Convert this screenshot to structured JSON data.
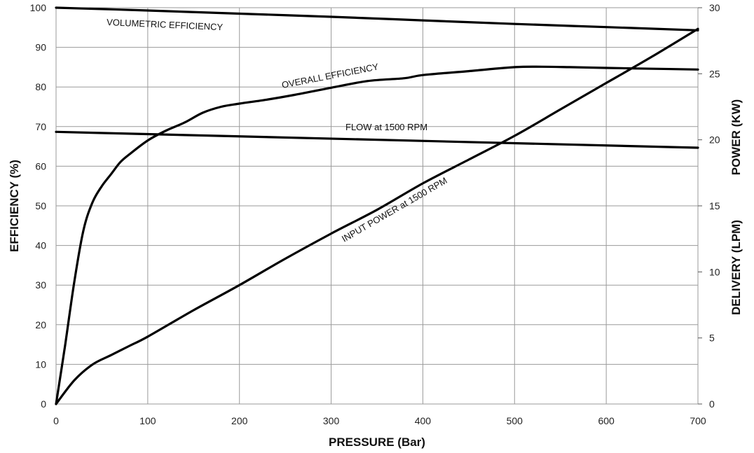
{
  "chart_data": {
    "type": "line",
    "xlabel": "PRESSURE (Bar)",
    "ylabel_left": "EFFICIENCY (%)",
    "ylabel_right_power": "POWER (KW)",
    "ylabel_right_delivery": "DELIVERY (LPM)",
    "xlim": [
      0,
      700
    ],
    "ylim_left": [
      0,
      100
    ],
    "ylim_right": [
      0,
      30
    ],
    "x_ticks": [
      "0",
      "100",
      "200",
      "300",
      "400",
      "500",
      "600",
      "700"
    ],
    "y_left_ticks": [
      "0",
      "10",
      "20",
      "30",
      "40",
      "50",
      "60",
      "70",
      "80",
      "90",
      "100"
    ],
    "y_right_ticks": [
      "0",
      "5",
      "10",
      "15",
      "20",
      "25",
      "30"
    ],
    "grid": true,
    "series": [
      {
        "name": "VOLUMETRIC EFFICIENCY",
        "axis": "left",
        "x": [
          0,
          100,
          200,
          300,
          400,
          500,
          600,
          700
        ],
        "y": [
          100,
          99.3,
          98.5,
          97.7,
          96.8,
          95.9,
          95.1,
          94.3
        ]
      },
      {
        "name": "OVERALL EFFICIENCY",
        "axis": "left",
        "x": [
          0,
          10,
          20,
          30,
          40,
          50,
          60,
          70,
          80,
          100,
          120,
          140,
          160,
          180,
          200,
          230,
          260,
          300,
          340,
          380,
          400,
          450,
          500,
          530,
          560,
          600,
          650,
          700
        ],
        "y": [
          0,
          15,
          31,
          44,
          51,
          55,
          58,
          61,
          63,
          66.5,
          69,
          71,
          73.5,
          75,
          75.8,
          76.8,
          78,
          79.8,
          81.5,
          82.2,
          83,
          84,
          85,
          85.1,
          85,
          84.8,
          84.6,
          84.4
        ]
      },
      {
        "name": "FLOW at 1500 RPM",
        "axis": "right",
        "x": [
          0,
          700
        ],
        "y": [
          20.6,
          19.4
        ]
      },
      {
        "name": "INPUT POWER at 1500 RPM",
        "axis": "right",
        "x": [
          0,
          20,
          40,
          60,
          80,
          100,
          150,
          200,
          250,
          300,
          350,
          400,
          450,
          500,
          550,
          600,
          650,
          700
        ],
        "y": [
          0,
          1.8,
          3,
          3.7,
          4.4,
          5.1,
          7.1,
          9,
          11,
          12.9,
          14.7,
          16.7,
          18.5,
          20.3,
          22.3,
          24.3,
          26.3,
          28.4
        ]
      }
    ]
  }
}
